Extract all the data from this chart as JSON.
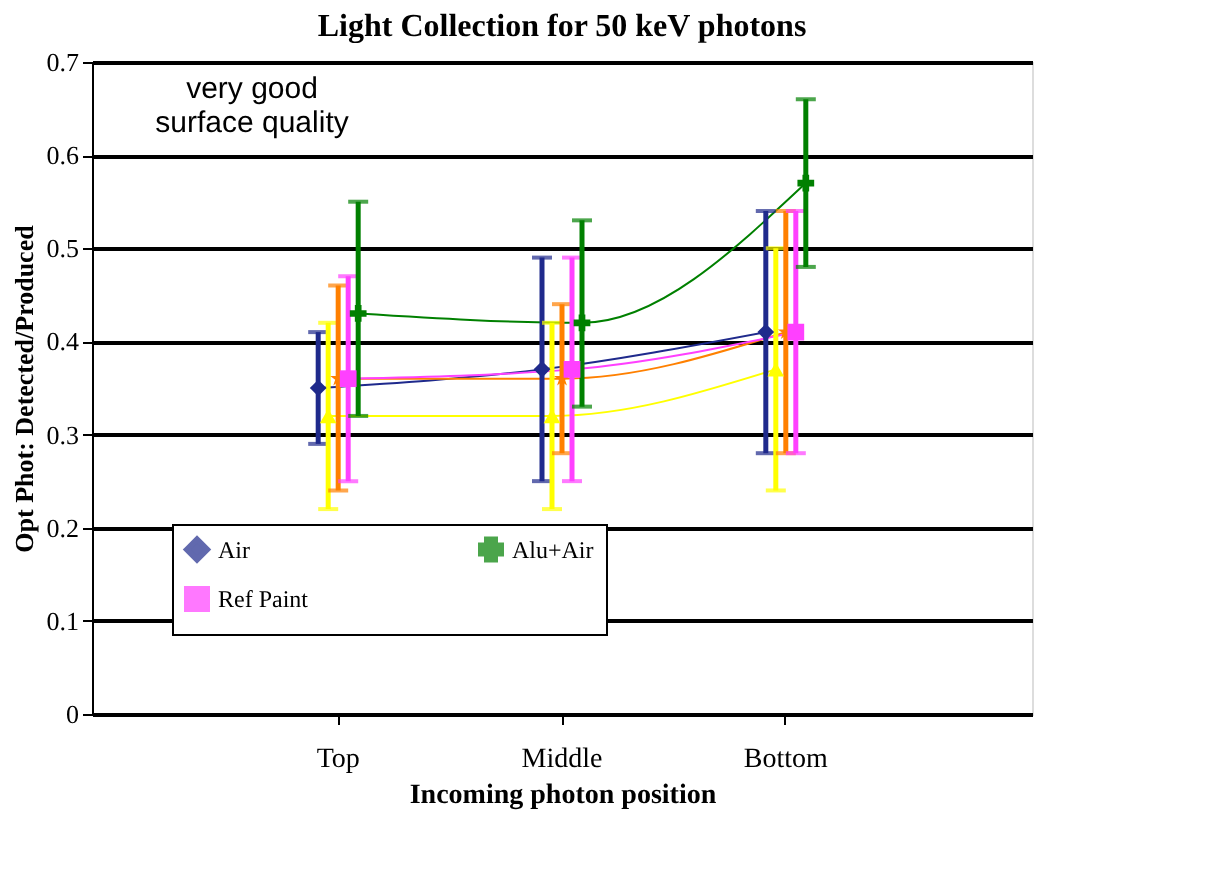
{
  "chart_data": {
    "type": "line",
    "title": "Light Collection for 50 keV photons",
    "xlabel": "Incoming photon position",
    "ylabel": "Opt Phot: Detected/Produced",
    "categories": [
      "Top",
      "Middle",
      "Bottom"
    ],
    "series": [
      {
        "name": "Air",
        "color": "#1f2a8c",
        "marker": "diamond",
        "values": [
          0.35,
          0.37,
          0.41
        ],
        "errors": [
          [
            0.29,
            0.41
          ],
          [
            0.25,
            0.49
          ],
          [
            0.28,
            0.54
          ]
        ]
      },
      {
        "color": "#ffff00",
        "marker": "triangle",
        "values": [
          0.32,
          0.32,
          0.37
        ],
        "errors": [
          [
            0.22,
            0.42
          ],
          [
            0.22,
            0.42
          ],
          [
            0.24,
            0.5
          ]
        ]
      },
      {
        "color": "#ff8000",
        "marker": "star",
        "values": [
          0.36,
          0.36,
          0.41
        ],
        "errors": [
          [
            0.24,
            0.46
          ],
          [
            0.28,
            0.44
          ],
          [
            0.28,
            0.54
          ]
        ]
      },
      {
        "name": "Ref Paint",
        "color": "#ff40ff",
        "marker": "square",
        "values": [
          0.36,
          0.37,
          0.41
        ],
        "errors": [
          [
            0.25,
            0.47
          ],
          [
            0.25,
            0.49
          ],
          [
            0.28,
            0.54
          ]
        ]
      },
      {
        "name": "Alu+Air",
        "color": "#008000",
        "marker": "cross",
        "values": [
          0.43,
          0.42,
          0.57
        ],
        "errors": [
          [
            0.32,
            0.55
          ],
          [
            0.33,
            0.53
          ],
          [
            0.48,
            0.66
          ]
        ]
      }
    ],
    "ylim": [
      0,
      0.7
    ],
    "yticks": [
      {
        "value": 0,
        "label": "0"
      },
      0.1,
      0.2,
      0.3,
      0.4,
      0.5,
      0.6,
      0.7
    ],
    "grid": "y",
    "legend": "bottom",
    "annotations": [
      "very good surface quality"
    ]
  }
}
